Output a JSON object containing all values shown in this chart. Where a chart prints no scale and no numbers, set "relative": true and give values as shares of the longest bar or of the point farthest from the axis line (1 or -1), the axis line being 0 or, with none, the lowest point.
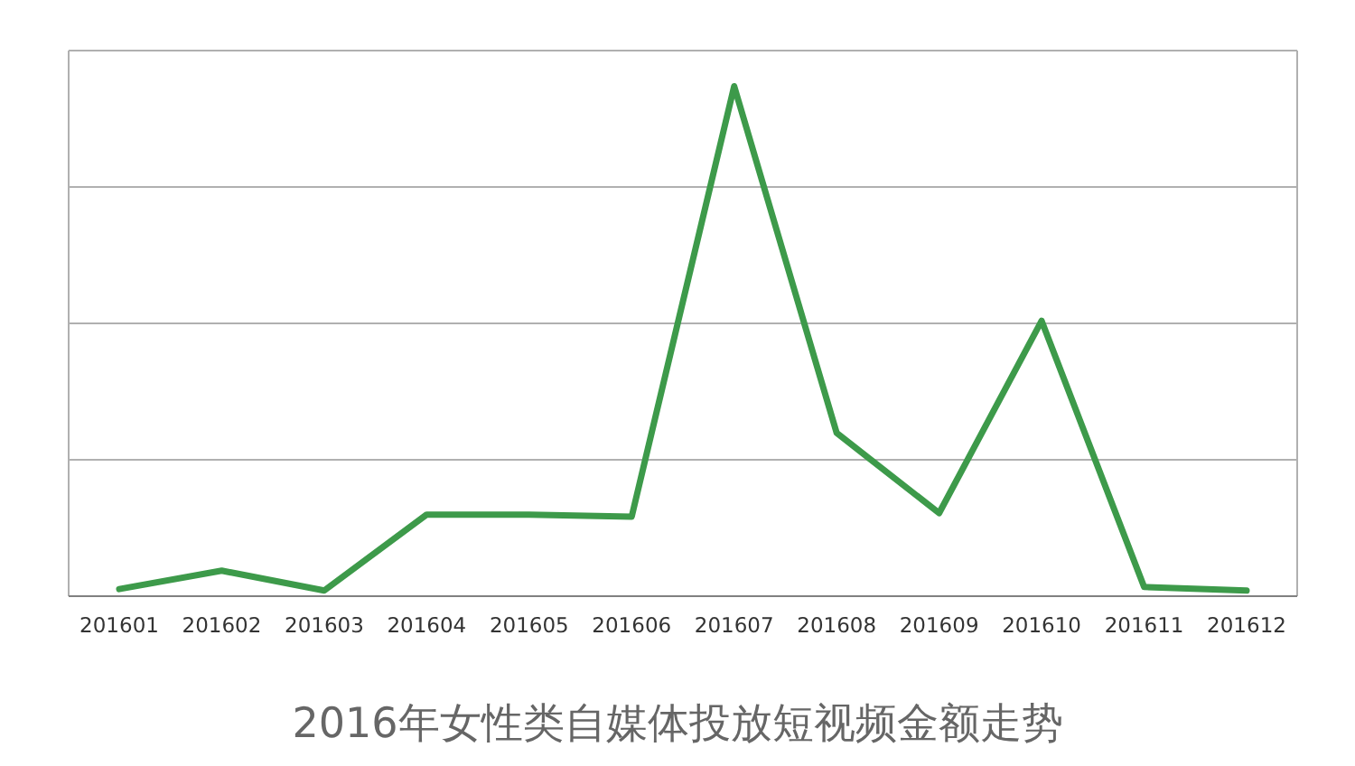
{
  "chart_data": {
    "type": "line",
    "relative": true,
    "grid": "y",
    "marker": "none",
    "line_style": "solid",
    "title": "2016年女性类自媒体投放短视频金额走势",
    "categories": [
      "201601",
      "201602",
      "201603",
      "201604",
      "201605",
      "201606",
      "201607",
      "201608",
      "201609",
      "201610",
      "201611",
      "201612"
    ],
    "series": [
      {
        "color": "#3d9a4a",
        "values": [
          0.014,
          0.05,
          0.011,
          0.16,
          0.16,
          0.156,
          1,
          0.32,
          0.163,
          0.54,
          0.018,
          0.011
        ]
      }
    ]
  }
}
